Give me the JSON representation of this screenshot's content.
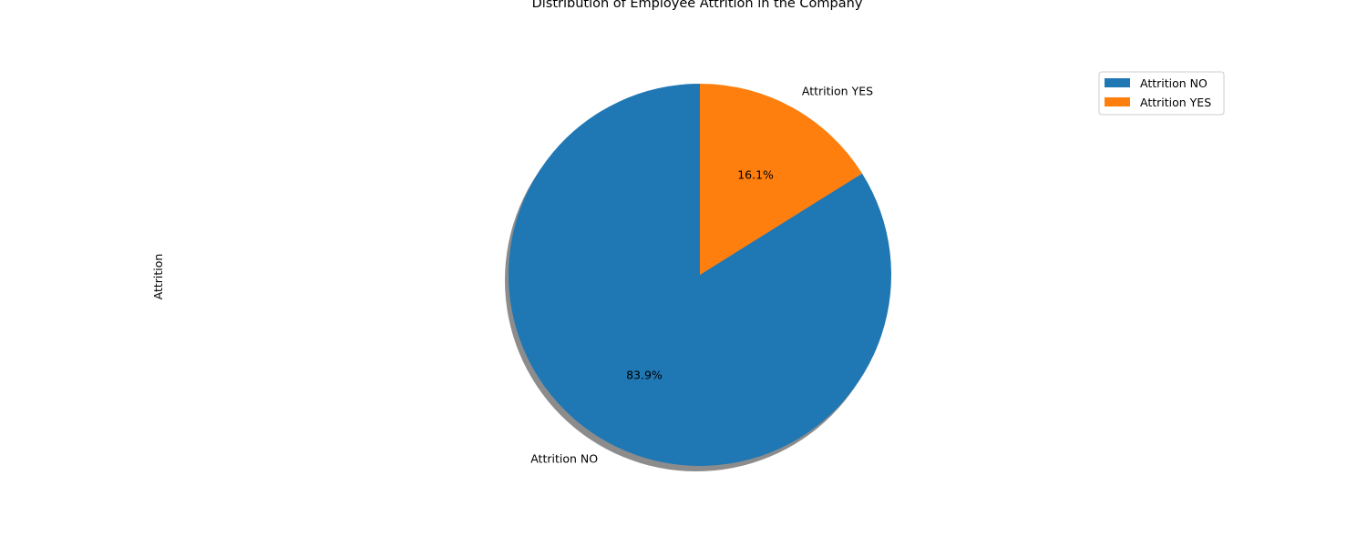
{
  "chart_data": {
    "type": "pie",
    "title": "Distribution of Employee Attrition in the Company",
    "ylabel": "Attrition",
    "categories": [
      "Attrition NO",
      "Attrition YES"
    ],
    "values": [
      83.9,
      16.1
    ],
    "value_labels": [
      "83.9%",
      "16.1%"
    ],
    "colors": [
      "#1f77b4",
      "#ff7f0e"
    ],
    "start_angle_deg": 90,
    "direction": "counterclockwise",
    "shadow": true,
    "legend": {
      "placement": "top-right",
      "entries": [
        "Attrition NO",
        "Attrition YES"
      ]
    }
  }
}
